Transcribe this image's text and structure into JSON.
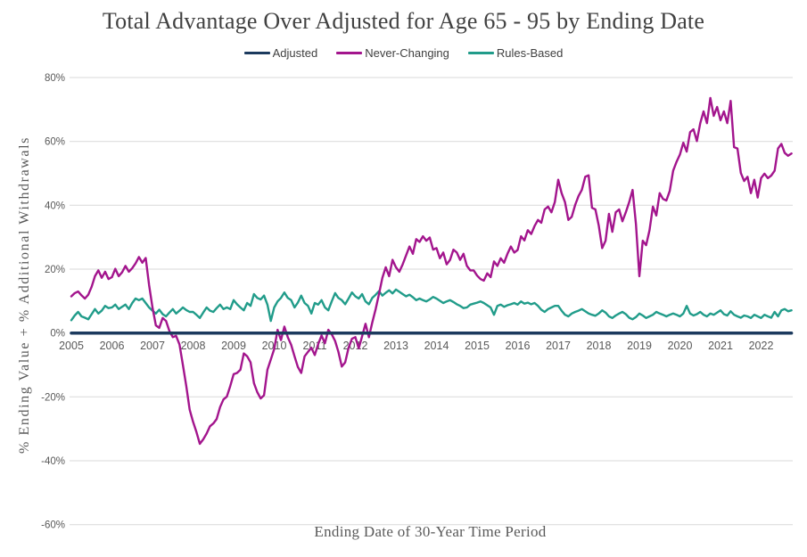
{
  "title": "Total Advantage Over Adjusted for Age 65 - 95 by Ending Date",
  "legend": [
    {
      "label": "Adjusted",
      "color": "#1c3a5e"
    },
    {
      "label": "Never-Changing",
      "color": "#a3158d"
    },
    {
      "label": "Rules-Based",
      "color": "#219c8a"
    }
  ],
  "colors": {
    "title_text": "#414141",
    "tick_text": "#595959",
    "axis_title_text": "#595959",
    "gridline": "#d9d9d9",
    "background": "#ffffff"
  },
  "chart_data": {
    "type": "line",
    "title": "Total Advantage Over Adjusted for Age 65 - 95 by Ending Date",
    "xlabel": "Ending Date of 30-Year Time Period",
    "ylabel": "% Ending Value + % Additional Withdrawals",
    "ylim": [
      -60,
      80
    ],
    "ytick_step": 20,
    "grid": "horizontal",
    "grid_color": "#d9d9d9",
    "legend_position": "top",
    "x_start": "2005-01",
    "x_frequency": "monthly",
    "n_points": 214,
    "yticks": [
      {
        "value": 80,
        "label": "80%"
      },
      {
        "value": 60,
        "label": "60%"
      },
      {
        "value": 40,
        "label": "40%"
      },
      {
        "value": 20,
        "label": "20%"
      },
      {
        "value": 0,
        "label": "0%"
      },
      {
        "value": -20,
        "label": "-20%"
      },
      {
        "value": -40,
        "label": "-40%"
      },
      {
        "value": -60,
        "label": "-60%"
      }
    ],
    "xticks": [
      "2005",
      "2006",
      "2007",
      "2008",
      "2009",
      "2010",
      "2011",
      "2012",
      "2013",
      "2014",
      "2015",
      "2016",
      "2017",
      "2018",
      "2019",
      "2020",
      "2021",
      "2022"
    ],
    "series": [
      {
        "name": "Adjusted",
        "color": "#1c3a5e",
        "width": 3.5,
        "z": 3,
        "constant": 0
      },
      {
        "name": "Never-Changing",
        "color": "#a3158d",
        "width": 2.4,
        "z": 2,
        "values": [
          11.5,
          12.5,
          13.0,
          11.8,
          10.8,
          12.0,
          14.5,
          17.8,
          19.6,
          17.3,
          19.2,
          16.9,
          17.5,
          20.1,
          17.8,
          19.0,
          21.0,
          19.2,
          20.3,
          21.8,
          23.8,
          22.0,
          23.5,
          15.0,
          8.0,
          2.4,
          1.6,
          4.7,
          3.8,
          0.6,
          -1.3,
          -0.9,
          -3.6,
          -10.0,
          -16.6,
          -24.0,
          -27.8,
          -31.0,
          -34.7,
          -33.3,
          -31.5,
          -29.2,
          -28.3,
          -26.9,
          -23.2,
          -20.8,
          -19.9,
          -16.6,
          -12.9,
          -12.5,
          -11.5,
          -6.4,
          -7.3,
          -9.2,
          -15.7,
          -18.5,
          -20.5,
          -19.5,
          -11.5,
          -8.3,
          -5.0,
          1.0,
          -2.2,
          2.0,
          -1.3,
          -3.7,
          -7.3,
          -10.6,
          -12.5,
          -7.3,
          -5.9,
          -4.6,
          -6.9,
          -3.5,
          -0.8,
          -3.2,
          1.0,
          -0.4,
          -2.5,
          -5.9,
          -10.5,
          -9.2,
          -4.6,
          -1.8,
          -1.3,
          -4.8,
          -1.0,
          2.9,
          -1.3,
          3.3,
          7.5,
          12.2,
          17.3,
          20.6,
          17.8,
          22.9,
          20.6,
          19.2,
          21.5,
          24.3,
          27.1,
          24.8,
          29.4,
          28.5,
          30.3,
          28.9,
          29.9,
          26.1,
          26.6,
          23.4,
          25.2,
          21.5,
          22.9,
          26.1,
          25.2,
          22.9,
          24.8,
          21.0,
          19.6,
          19.6,
          18.0,
          16.9,
          16.4,
          18.7,
          17.5,
          22.4,
          21.0,
          23.4,
          22.0,
          24.8,
          27.1,
          25.2,
          26.0,
          30.3,
          29.0,
          32.2,
          31.0,
          33.5,
          35.4,
          34.5,
          38.7,
          39.6,
          37.8,
          41.0,
          48.0,
          43.8,
          41.0,
          35.4,
          36.4,
          40.1,
          42.9,
          44.8,
          48.9,
          49.4,
          39.2,
          38.7,
          33.6,
          26.6,
          28.9,
          37.3,
          31.7,
          37.8,
          38.7,
          35.0,
          37.8,
          41.0,
          44.8,
          34.0,
          17.8,
          28.9,
          27.5,
          32.2,
          39.6,
          36.8,
          43.8,
          42.0,
          41.5,
          44.5,
          50.8,
          53.6,
          55.9,
          59.6,
          56.8,
          62.9,
          63.8,
          60.1,
          65.7,
          69.4,
          65.7,
          73.6,
          68.0,
          70.8,
          66.6,
          69.4,
          65.7,
          72.7,
          58.2,
          57.8,
          50.1,
          47.6,
          48.9,
          43.8,
          48.0,
          42.4,
          48.5,
          49.9,
          48.5,
          49.3,
          50.8,
          57.8,
          59.2,
          56.4,
          55.5,
          56.2
        ]
      },
      {
        "name": "Rules-Based",
        "color": "#219c8a",
        "width": 2.4,
        "z": 1,
        "values": [
          4.0,
          5.5,
          6.6,
          5.2,
          4.8,
          4.3,
          5.9,
          7.5,
          6.1,
          7.0,
          8.5,
          7.8,
          8.0,
          8.9,
          7.5,
          8.2,
          8.9,
          7.5,
          9.4,
          10.8,
          10.3,
          10.8,
          9.4,
          8.0,
          7.0,
          6.1,
          7.3,
          5.9,
          5.2,
          6.4,
          7.5,
          6.1,
          7.0,
          8.0,
          7.2,
          6.6,
          6.6,
          5.7,
          4.7,
          6.4,
          8.0,
          7.0,
          6.6,
          7.8,
          8.9,
          7.5,
          8.0,
          7.5,
          10.3,
          9.0,
          8.0,
          7.1,
          9.4,
          8.5,
          12.2,
          11.0,
          10.5,
          11.7,
          8.9,
          3.8,
          8.0,
          9.9,
          11.0,
          12.7,
          11.0,
          10.3,
          8.0,
          9.5,
          11.7,
          9.4,
          8.5,
          6.1,
          9.4,
          8.9,
          10.3,
          8.0,
          7.1,
          9.9,
          12.5,
          11.0,
          10.3,
          9.0,
          10.8,
          12.7,
          11.5,
          10.8,
          12.2,
          9.9,
          9.0,
          11.0,
          12.0,
          13.1,
          11.7,
          12.6,
          13.4,
          12.4,
          13.6,
          12.9,
          12.2,
          11.5,
          12.0,
          11.2,
          10.3,
          10.8,
          10.3,
          9.9,
          10.5,
          11.3,
          10.8,
          10.1,
          9.4,
          9.9,
          10.3,
          9.7,
          9.0,
          8.5,
          7.8,
          8.0,
          8.9,
          9.2,
          9.5,
          9.9,
          9.4,
          8.7,
          8.0,
          5.7,
          8.5,
          8.9,
          8.2,
          8.7,
          9.0,
          9.4,
          8.9,
          9.9,
          9.2,
          9.5,
          9.0,
          9.4,
          8.5,
          7.3,
          6.6,
          7.5,
          8.0,
          8.5,
          8.5,
          7.0,
          5.7,
          5.2,
          6.1,
          6.6,
          7.0,
          7.5,
          6.8,
          6.1,
          5.7,
          5.4,
          6.1,
          7.1,
          6.4,
          5.2,
          4.7,
          5.5,
          6.1,
          6.6,
          5.9,
          4.8,
          4.3,
          5.0,
          6.1,
          5.5,
          4.7,
          5.2,
          5.7,
          6.6,
          6.1,
          5.7,
          5.2,
          5.7,
          6.1,
          5.7,
          5.2,
          6.1,
          8.5,
          6.1,
          5.5,
          5.9,
          6.6,
          5.7,
          5.2,
          6.1,
          5.7,
          6.4,
          7.1,
          5.9,
          5.5,
          6.8,
          5.7,
          5.2,
          4.8,
          5.5,
          5.2,
          4.7,
          5.7,
          5.2,
          4.7,
          5.7,
          5.2,
          4.8,
          6.6,
          5.2,
          7.1,
          7.5,
          6.8,
          7.1
        ]
      }
    ]
  }
}
